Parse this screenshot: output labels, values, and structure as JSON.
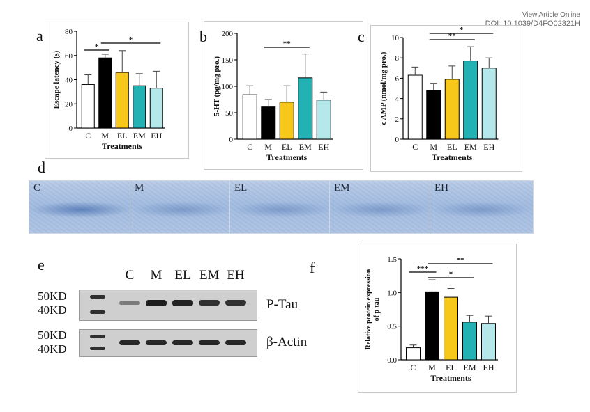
{
  "header": {
    "line1": "View Article Online",
    "line2": "DOI: 10.1039/D4FO02321H"
  },
  "panels": {
    "a": "a",
    "b": "b",
    "c": "c",
    "d": "d",
    "e": "e",
    "f": "f"
  },
  "colors": {
    "C": "#ffffff",
    "M": "#000000",
    "EL": "#f7c81a",
    "EM": "#23b2b4",
    "EH": "#b5e8ea"
  },
  "chart_data": [
    {
      "id": "a",
      "type": "bar",
      "categories": [
        "C",
        "M",
        "EL",
        "EM",
        "EH"
      ],
      "values": [
        36,
        58,
        46,
        35,
        33
      ],
      "errors": [
        8,
        3,
        18,
        10,
        14
      ],
      "ylim": [
        0,
        80
      ],
      "yticks": [
        "0",
        "20",
        "40",
        "60",
        "80"
      ],
      "xlabel": "Treatments",
      "ylabel": "Escape latency (s)",
      "significance": [
        {
          "from": "C",
          "to": "M",
          "label": "*"
        },
        {
          "from": "M",
          "to": "EH",
          "label": "*"
        }
      ]
    },
    {
      "id": "b",
      "type": "bar",
      "categories": [
        "C",
        "M",
        "EL",
        "EM",
        "EH"
      ],
      "values": [
        84,
        61,
        70,
        116,
        74
      ],
      "errors": [
        17,
        14,
        31,
        45,
        15
      ],
      "ylim": [
        0,
        200
      ],
      "yticks": [
        "0",
        "50",
        "100",
        "150",
        "200"
      ],
      "xlabel": "Treatments",
      "ylabel": "5-HT (pg/mg pro.)",
      "significance": [
        {
          "from": "M",
          "to": "EM",
          "label": "**"
        }
      ]
    },
    {
      "id": "c",
      "type": "bar",
      "categories": [
        "C",
        "M",
        "EL",
        "EM",
        "EH"
      ],
      "values": [
        6.3,
        4.8,
        5.9,
        7.7,
        7.0
      ],
      "errors": [
        0.8,
        0.7,
        1.3,
        1.4,
        1.0
      ],
      "ylim": [
        0,
        10
      ],
      "yticks": [
        "0",
        "2",
        "4",
        "6",
        "8",
        "10"
      ],
      "xlabel": "Treatments",
      "ylabel": "c AMP (nmol/mg pro.)",
      "significance": [
        {
          "from": "M",
          "to": "EM",
          "label": "**"
        },
        {
          "from": "M",
          "to": "EH",
          "label": "*"
        }
      ]
    },
    {
      "id": "f",
      "type": "bar",
      "categories": [
        "C",
        "M",
        "EL",
        "EM",
        "EH"
      ],
      "values": [
        0.18,
        1.01,
        0.93,
        0.56,
        0.54
      ],
      "errors": [
        0.04,
        0.18,
        0.13,
        0.1,
        0.11
      ],
      "ylim": [
        0,
        1.5
      ],
      "yticks": [
        "0.0",
        "0.5",
        "1.0",
        "1.5"
      ],
      "xlabel": "Treatments",
      "ylabel": "Relative protein expression of p-tau",
      "ylabel_lines": [
        "Relative protein expression",
        "of p-tau"
      ],
      "significance": [
        {
          "from": "C",
          "to": "M",
          "label": "***"
        },
        {
          "from": "M",
          "to": "EM",
          "label": "*"
        },
        {
          "from": "M",
          "to": "EH",
          "label": "**"
        }
      ]
    }
  ],
  "micrographs": [
    "C",
    "M",
    "EL",
    "EM",
    "EH"
  ],
  "western_blot": {
    "lanes": [
      "C",
      "M",
      "EL",
      "EM",
      "EH"
    ],
    "rows": [
      {
        "markers": [
          "50KD",
          "40KD"
        ],
        "band": "P-Tau"
      },
      {
        "markers": [
          "50KD",
          "40KD"
        ],
        "band": "β-Actin"
      }
    ]
  }
}
